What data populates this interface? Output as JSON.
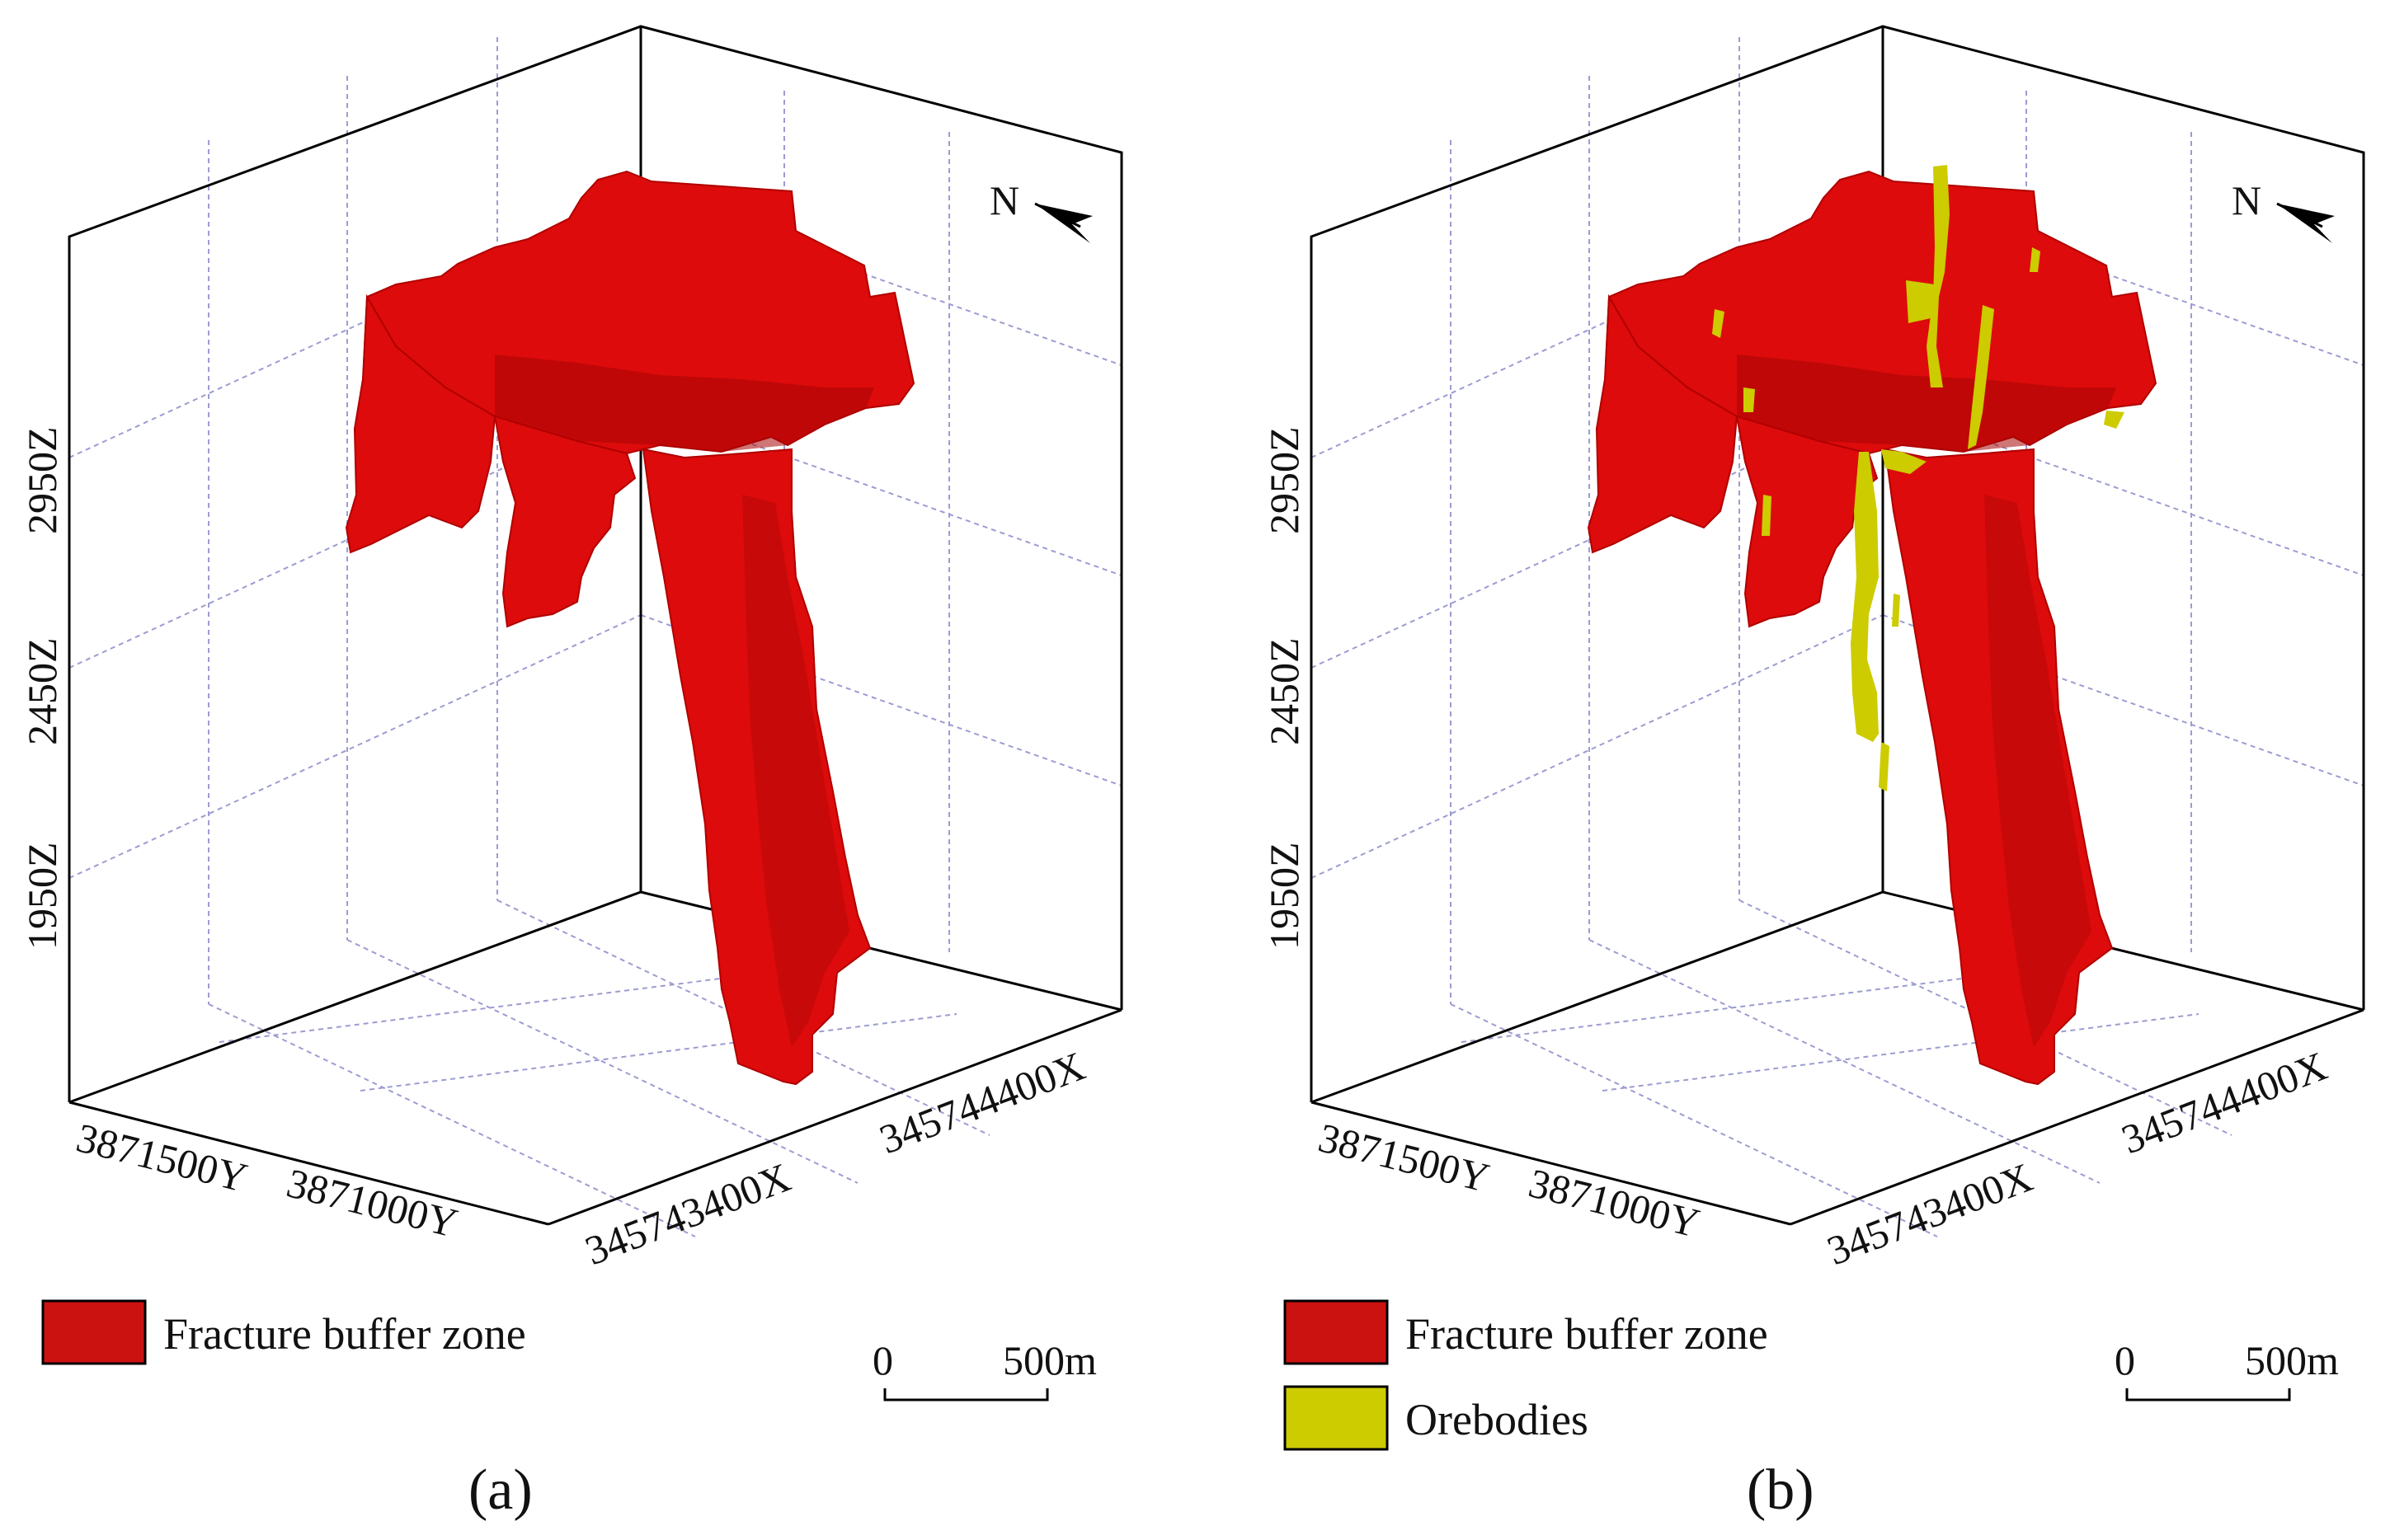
{
  "panels": [
    {
      "label": "(a)",
      "z_ticks": [
        "2950Z",
        "2450Z",
        "1950Z"
      ],
      "y_ticks": [
        "3871500Y",
        "3871000Y"
      ],
      "x_ticks": [
        "345743400X",
        "345744400X"
      ],
      "north_label": "N",
      "legend": [
        {
          "label": "Fracture buffer zone",
          "color": "#cc1111"
        }
      ],
      "scale_bar": {
        "start": "0",
        "end": "500m"
      }
    },
    {
      "label": "(b)",
      "z_ticks": [
        "2950Z",
        "2450Z",
        "1950Z"
      ],
      "y_ticks": [
        "3871500Y",
        "3871000Y"
      ],
      "x_ticks": [
        "345743400X",
        "345744400X"
      ],
      "north_label": "N",
      "legend": [
        {
          "label": "Fracture buffer zone",
          "color": "#cc1111"
        },
        {
          "label": "Orebodies",
          "color": "#cccc00"
        }
      ],
      "scale_bar": {
        "start": "0",
        "end": "500m"
      }
    }
  ],
  "colors": {
    "fracture_zone": "#dd0b0b",
    "fracture_shade": "#a80606",
    "orebody": "#cccc00",
    "grid": "#9c9cd2"
  }
}
